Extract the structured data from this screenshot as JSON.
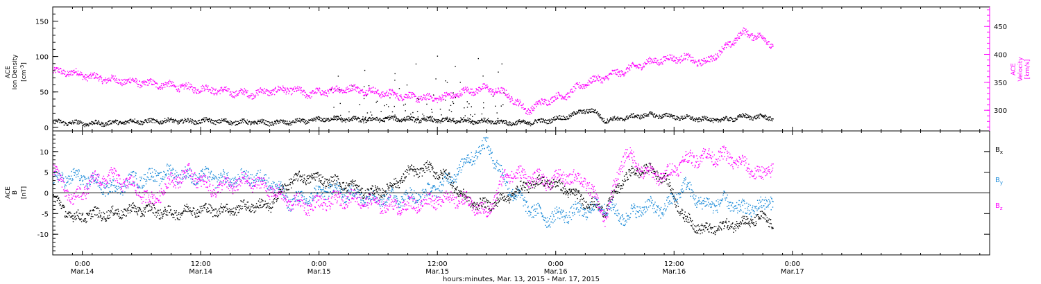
{
  "colors": {
    "black": "#000000",
    "magenta": "#ff00ff",
    "blue": "#1a8ad8",
    "frame": "#000000"
  },
  "chart_data": [
    {
      "type": "scatter",
      "panel": "top",
      "xlabel": "hours:minutes, Mar. 13, 2015 - Mar. 17, 2015",
      "x_unit": "hours since Mar. 13 21:00",
      "xlim": [
        0,
        95
      ],
      "x_ticks": [
        {
          "x": 3,
          "time": "0:00",
          "date": "Mar.14"
        },
        {
          "x": 15,
          "time": "12:00",
          "date": "Mar.14"
        },
        {
          "x": 27,
          "time": "0:00",
          "date": "Mar.15"
        },
        {
          "x": 39,
          "time": "12:00",
          "date": "Mar.15"
        },
        {
          "x": 51,
          "time": "0:00",
          "date": "Mar.16"
        },
        {
          "x": 63,
          "time": "12:00",
          "date": "Mar.16"
        },
        {
          "x": 75,
          "time": "0:00",
          "date": "Mar.17"
        }
      ],
      "y_left": {
        "label_lines": [
          "ACE",
          "Ion Density",
          "[cm^-3]"
        ],
        "ylim": [
          -5,
          170
        ],
        "ticks": [
          0,
          50,
          100,
          150
        ],
        "tick_labels": [
          "0",
          "50",
          "100",
          "150"
        ]
      },
      "y_right": {
        "label_lines": [
          "ACE",
          "Velocity",
          "[km/s]"
        ],
        "ylim": [
          263,
          485
        ],
        "ticks": [
          300,
          350,
          400,
          450
        ],
        "tick_labels": [
          "300",
          "350",
          "400",
          "450"
        ]
      },
      "series": [
        {
          "name": "Ion Density",
          "axis": "left",
          "color": "#000000",
          "x": [
            0,
            2,
            4,
            6,
            8,
            10,
            12,
            14,
            16,
            18,
            20,
            22,
            24,
            26,
            28,
            30,
            32,
            34,
            36,
            38,
            40,
            42,
            44,
            46,
            48,
            50,
            52,
            54,
            55,
            56,
            58,
            60,
            62,
            64,
            66,
            68,
            70,
            72,
            73
          ],
          "y": [
            8,
            7,
            6,
            7,
            9,
            9,
            10,
            9,
            10,
            8,
            8,
            7,
            8,
            10,
            13,
            12,
            11,
            13,
            12,
            11,
            10,
            10,
            9,
            7,
            7,
            10,
            15,
            25,
            22,
            10,
            14,
            18,
            17,
            14,
            12,
            11,
            16,
            15,
            14
          ]
        },
        {
          "name": "Velocity",
          "axis": "right",
          "color": "#ff00ff",
          "x": [
            0,
            2,
            4,
            6,
            8,
            10,
            12,
            14,
            16,
            18,
            20,
            22,
            24,
            26,
            28,
            30,
            32,
            34,
            36,
            38,
            40,
            42,
            44,
            46,
            48,
            50,
            52,
            54,
            56,
            58,
            60,
            62,
            64,
            66,
            68,
            70,
            72,
            73
          ],
          "y": [
            370,
            368,
            360,
            355,
            352,
            348,
            345,
            340,
            338,
            333,
            330,
            335,
            338,
            330,
            335,
            340,
            335,
            330,
            325,
            322,
            325,
            335,
            340,
            330,
            300,
            318,
            328,
            350,
            360,
            372,
            385,
            392,
            395,
            385,
            410,
            440,
            430,
            415
          ]
        }
      ]
    },
    {
      "type": "scatter",
      "panel": "bottom",
      "xlim": [
        0,
        95
      ],
      "y_left": {
        "label_lines": [
          "ACE",
          "B",
          "[nT]"
        ],
        "ylim": [
          -15,
          15
        ],
        "ticks": [
          -10,
          -5,
          0,
          5,
          10
        ],
        "tick_labels": [
          "-10",
          "-5",
          "0",
          "5",
          "10"
        ]
      },
      "zero_line": true,
      "series": [
        {
          "name": "Bx",
          "legend_base": "B",
          "legend_sub": "x",
          "color": "#000000",
          "x": [
            0,
            2,
            4,
            6,
            8,
            10,
            12,
            14,
            16,
            18,
            20,
            22,
            24,
            26,
            28,
            30,
            32,
            34,
            36,
            38,
            40,
            42,
            44,
            46,
            48,
            50,
            52,
            54,
            56,
            58,
            60,
            62,
            64,
            66,
            68,
            70,
            72,
            73
          ],
          "y": [
            -1,
            -6,
            -5,
            -5,
            -4,
            -4,
            -5,
            -4,
            -4,
            -4,
            -3,
            -3,
            3,
            4,
            3,
            2,
            0,
            1,
            5,
            6,
            4,
            -2,
            -3,
            -1,
            2,
            3,
            1,
            -2,
            -4,
            4,
            6,
            4,
            -6,
            -9,
            -8,
            -7,
            -6,
            -7
          ]
        },
        {
          "name": "By",
          "legend_base": "B",
          "legend_sub": "y",
          "color": "#1a8ad8",
          "x": [
            0,
            2,
            4,
            6,
            8,
            10,
            12,
            14,
            16,
            18,
            20,
            22,
            24,
            26,
            28,
            30,
            32,
            34,
            36,
            38,
            40,
            42,
            44,
            46,
            48,
            50,
            52,
            54,
            56,
            58,
            60,
            62,
            64,
            66,
            68,
            70,
            72,
            73
          ],
          "y": [
            3,
            4,
            3,
            1,
            3,
            4,
            5,
            4,
            4,
            3,
            4,
            3,
            -2,
            -1,
            1,
            0,
            -1,
            -1,
            -1,
            0,
            3,
            8,
            12,
            2,
            -3,
            -6,
            -5,
            -4,
            -3,
            -6,
            -3,
            -4,
            2,
            -3,
            -2,
            -4,
            -3,
            -1
          ]
        },
        {
          "name": "Bz",
          "legend_base": "B",
          "legend_sub": "z",
          "color": "#ff00ff",
          "x": [
            0,
            2,
            4,
            6,
            8,
            10,
            12,
            14,
            16,
            18,
            20,
            22,
            24,
            26,
            28,
            30,
            32,
            34,
            36,
            38,
            40,
            42,
            44,
            46,
            48,
            50,
            52,
            54,
            56,
            58,
            60,
            62,
            64,
            66,
            68,
            70,
            72,
            73
          ],
          "y": [
            6,
            -2,
            3,
            4,
            2,
            -2,
            3,
            5,
            1,
            2,
            3,
            1,
            -2,
            -3,
            -2,
            -1,
            -2,
            -3,
            -3,
            -2,
            -1,
            -2,
            -5,
            5,
            4,
            3,
            4,
            3,
            -6,
            10,
            5,
            4,
            8,
            9,
            9,
            7,
            4,
            7
          ]
        }
      ]
    }
  ]
}
